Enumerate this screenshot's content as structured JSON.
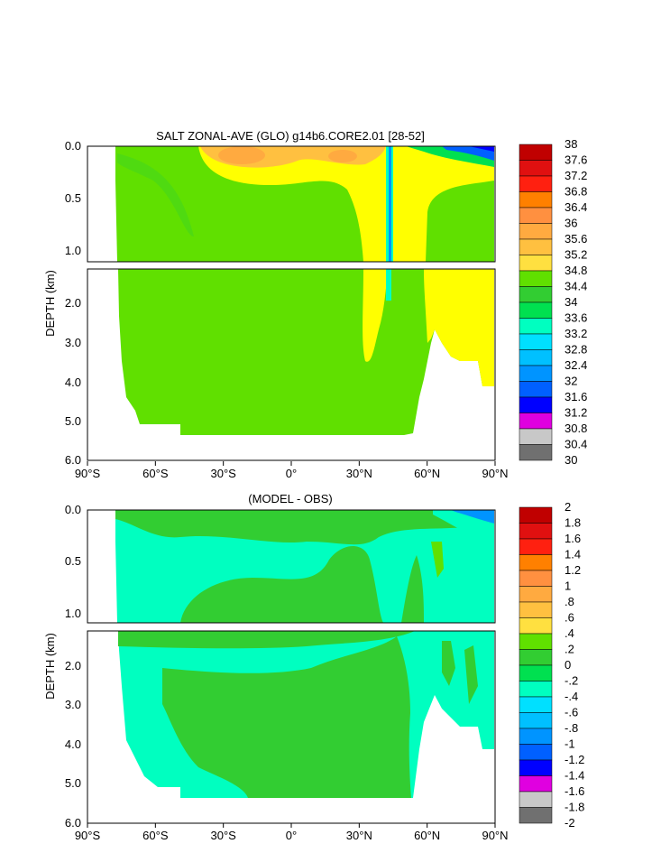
{
  "colors": {
    "salt_levels": [
      "#707070",
      "#c8c8c8",
      "#e000e0",
      "#9000d0",
      "#0000ff",
      "#0060ff",
      "#0094ff",
      "#00c0ff",
      "#00e0ff",
      "#00ffff",
      "#00ffc0",
      "#00e050",
      "#32cd32",
      "#60e000",
      "#ffff00",
      "#ffe040",
      "#ffc040",
      "#ffaa40",
      "#ff9040",
      "#ff8000",
      "#ff4020",
      "#ff2010",
      "#e01010",
      "#c00000"
    ],
    "diff_levels": [
      "#707070",
      "#c8c8c8",
      "#e000e0",
      "#9000d0",
      "#0000ff",
      "#0060ff",
      "#0094ff",
      "#00c0ff",
      "#00e0ff",
      "#00ffff",
      "#00ffc0",
      "#00e050",
      "#32cd32",
      "#60e000",
      "#ffff00",
      "#ffe040",
      "#ffc040",
      "#ffaa40",
      "#ff9040",
      "#ff8000",
      "#ff4020",
      "#ff2010",
      "#e01010",
      "#c00000"
    ]
  },
  "chart_data": [
    {
      "type": "heatmap",
      "title": "SALT ZONAL-AVE (GLO) g14b6.CORE2.01 [28-52]",
      "ylabel": "DEPTH (km)",
      "x_ticks": [
        "90°S",
        "60°S",
        "30°S",
        "0°",
        "30°N",
        "60°N",
        "90°N"
      ],
      "y_ticks_upper": [
        "0.0",
        "0.5",
        "1.0"
      ],
      "y_ticks_lower": [
        "2.0",
        "3.0",
        "4.0",
        "5.0",
        "6.0"
      ],
      "xlim": [
        -90,
        90
      ],
      "ylim_km": [
        0,
        6
      ],
      "colorbar_labels": [
        "38",
        "37.6",
        "37.2",
        "36.8",
        "36.4",
        "36",
        "35.6",
        "35.2",
        "34.8",
        "34.4",
        "34",
        "33.6",
        "33.2",
        "32.8",
        "32.4",
        "32",
        "31.6",
        "31.2",
        "30.8",
        "30.4",
        "30"
      ]
    },
    {
      "type": "heatmap",
      "title": "(MODEL - OBS)",
      "ylabel": "DEPTH (km)",
      "x_ticks": [
        "90°S",
        "60°S",
        "30°S",
        "0°",
        "30°N",
        "60°N",
        "90°N"
      ],
      "y_ticks_upper": [
        "0.0",
        "0.5",
        "1.0"
      ],
      "y_ticks_lower": [
        "2.0",
        "3.0",
        "4.0",
        "5.0",
        "6.0"
      ],
      "xlim": [
        -90,
        90
      ],
      "ylim_km": [
        0,
        6
      ],
      "colorbar_labels": [
        "2",
        "1.8",
        "1.6",
        "1.4",
        "1.2",
        "1",
        ".8",
        ".6",
        ".4",
        ".2",
        "0",
        "-.2",
        "-.4",
        "-.6",
        "-.8",
        "-1",
        "-1.2",
        "-1.4",
        "-1.6",
        "-1.8",
        "-2"
      ]
    }
  ]
}
